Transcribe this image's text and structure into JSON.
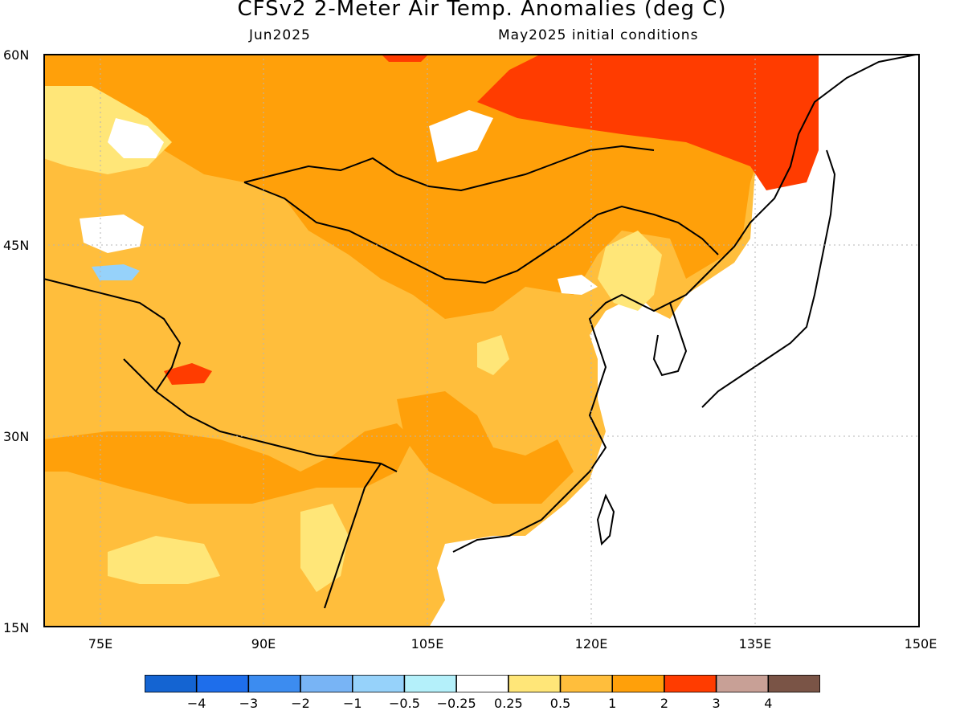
{
  "title": "CFSv2 2-Meter Air Temp. Anomalies (deg C)",
  "subtitle_left": "Jun2025",
  "subtitle_right": "May2025 initial conditions",
  "lat_labels": [
    "60N",
    "45N",
    "30N",
    "15N"
  ],
  "lon_labels": [
    "75E",
    "90E",
    "105E",
    "120E",
    "135E",
    "150E"
  ],
  "colorbar": {
    "colors": [
      "#1464d2",
      "#1e6eeb",
      "#3c8cf0",
      "#78b4f5",
      "#96d2fa",
      "#b4f0fa",
      "#ffffff",
      "#ffe678",
      "#ffbe3c",
      "#ffa00a",
      "#ff3c00",
      "#c8a096",
      "#7a5446"
    ],
    "labels": [
      "−4",
      "−3",
      "−2",
      "−1",
      "−0.5",
      "−0.25",
      "0.25",
      "0.5",
      "1",
      "2",
      "3",
      "4"
    ]
  }
}
